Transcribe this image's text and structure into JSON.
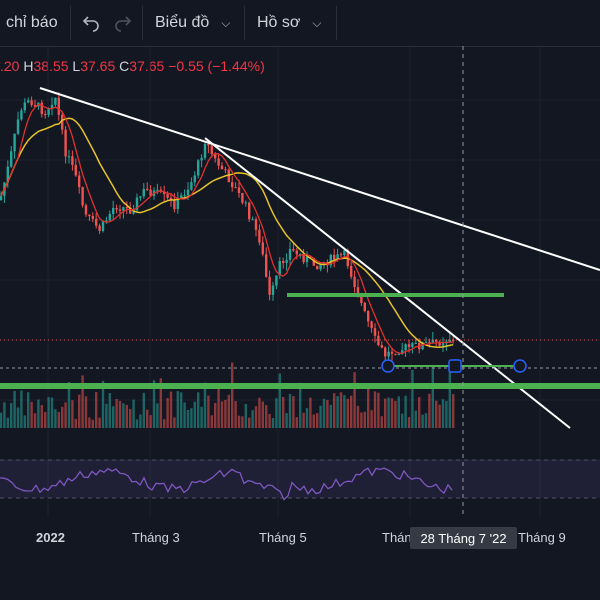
{
  "toolbar": {
    "indicators_label": "chỉ báo",
    "chart_menu_label": "Biểu đồ",
    "profile_menu_label": "Hồ sơ",
    "undo_icon": "undo-icon",
    "redo_icon": "redo-icon"
  },
  "ohlc": {
    "open_partial": ".20",
    "high_prefix": "H",
    "high": "38.55",
    "low_prefix": "L",
    "low": "37.65",
    "close_prefix": "C",
    "close": "37.65",
    "change": "−0.55 (−1.44%)"
  },
  "time_axis": {
    "labels": [
      "2022",
      "Tháng 3",
      "Tháng 5",
      "Thán",
      "Tháng 9"
    ],
    "crosshair_label": "28 Tháng 7 '22"
  },
  "colors": {
    "background": "#131722",
    "up": "#26a69a",
    "down": "#ef5350",
    "ma_fast": "#e0312e",
    "ma_slow": "#e6c229",
    "trendline": "#ffffff",
    "support": "#4caf50",
    "rsi": "#7e57c2"
  }
}
